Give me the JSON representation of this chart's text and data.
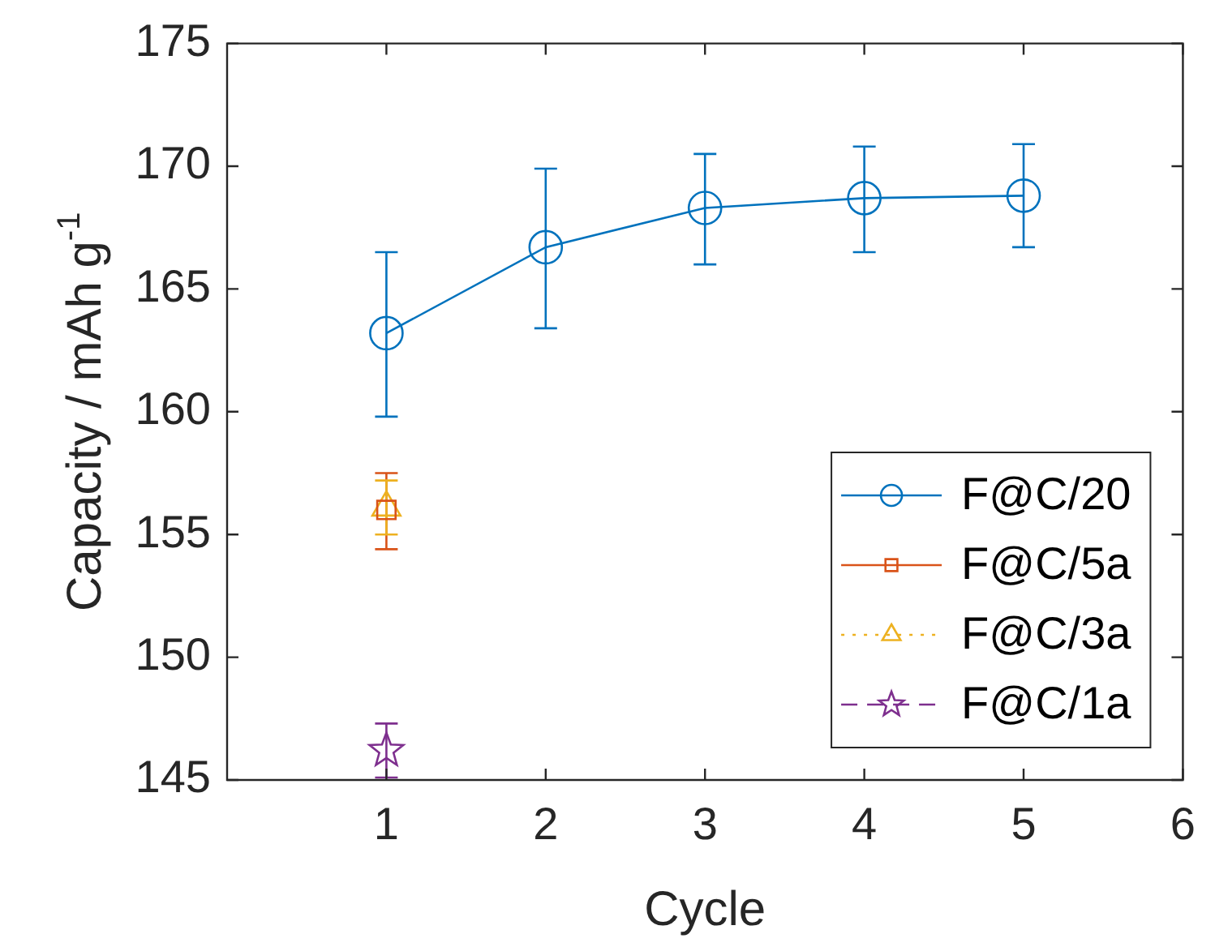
{
  "chart_data": {
    "type": "line",
    "xlabel": "Cycle",
    "ylabel": "Capacity / mAh g$^{-1}$",
    "xlim": [
      0,
      6
    ],
    "xticks": [
      1,
      2,
      3,
      4,
      5,
      6
    ],
    "ylim": [
      145,
      175
    ],
    "yticks": [
      145,
      150,
      155,
      160,
      165,
      170,
      175
    ],
    "grid": false,
    "legend": "bottom right",
    "series": [
      {
        "name": "F@C/20",
        "color": "#0072bd",
        "marker": "circle",
        "line_style": "solid",
        "x": [
          1,
          2,
          3,
          4,
          5
        ],
        "values": [
          163.2,
          166.7,
          168.3,
          168.7,
          168.8
        ],
        "errors": [
          [
            159.8,
            166.5
          ],
          [
            163.4,
            169.9
          ],
          [
            166.0,
            170.5
          ],
          [
            166.5,
            170.8
          ],
          [
            166.7,
            170.9
          ]
        ]
      },
      {
        "name": "F@C/5a",
        "color": "#d95319",
        "marker": "square",
        "line_style": "solid",
        "x": [
          1
        ],
        "values": [
          156.0
        ],
        "errors": [
          [
            154.4,
            157.5
          ]
        ]
      },
      {
        "name": "F@C/3a",
        "color": "#edb120",
        "marker": "triangle",
        "line_style": "dotted",
        "x": [
          1
        ],
        "values": [
          156.1
        ],
        "errors": [
          [
            155.0,
            157.2
          ]
        ]
      },
      {
        "name": "F@C/1a",
        "color": "#7e2f8e",
        "marker": "star",
        "line_style": "dashed",
        "x": [
          1
        ],
        "values": [
          146.2
        ],
        "errors": [
          [
            145.1,
            147.3
          ]
        ]
      }
    ]
  }
}
